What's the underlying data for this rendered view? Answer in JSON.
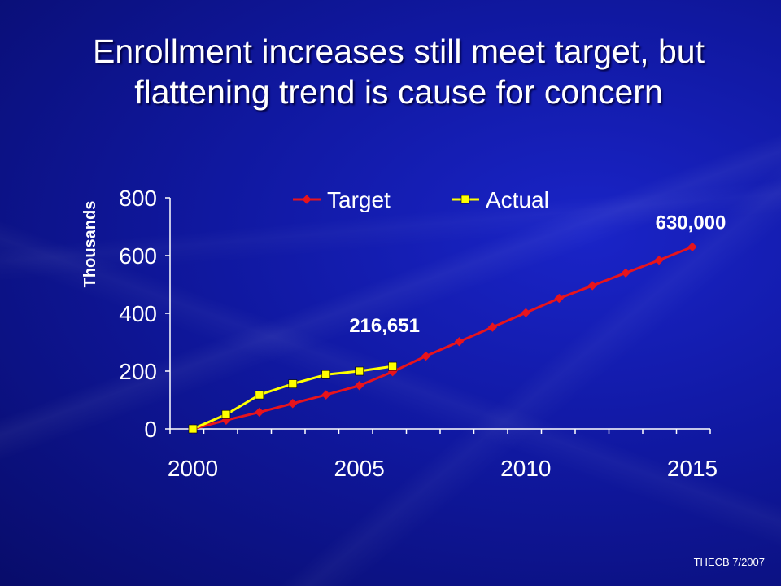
{
  "slide": {
    "title_line1": "Enrollment increases still meet target, but",
    "title_line2": "flattening trend is cause for concern",
    "footer": "THECB 7/2007"
  },
  "colors": {
    "target": "#e8141c",
    "actual": "#ffff00",
    "axis": "#ffffff",
    "background": "#1018a0"
  },
  "chart_data": {
    "type": "line",
    "ylabel": "Thousands",
    "xlabel": "",
    "ylim": [
      0,
      800
    ],
    "yticks": [
      0,
      200,
      400,
      600,
      800
    ],
    "xlim": [
      2000,
      2015
    ],
    "xticks": [
      2000,
      2005,
      2010,
      2015
    ],
    "grid": false,
    "legend_position": "top",
    "series": [
      {
        "name": "Target",
        "marker": "diamond",
        "color": "#e8141c",
        "x": [
          2000,
          2001,
          2002,
          2003,
          2004,
          2005,
          2006,
          2007,
          2008,
          2009,
          2010,
          2011,
          2012,
          2013,
          2014,
          2015
        ],
        "y": [
          0,
          30,
          58,
          88,
          118,
          150,
          198,
          252,
          302,
          352,
          402,
          452,
          496,
          540,
          584,
          630
        ]
      },
      {
        "name": "Actual",
        "marker": "square",
        "color": "#ffff00",
        "x": [
          2000,
          2001,
          2002,
          2003,
          2004,
          2005,
          2006
        ],
        "y": [
          0,
          50,
          118,
          156,
          188,
          200,
          216.651
        ]
      }
    ],
    "annotations": [
      {
        "text": "216,651",
        "x": 2006,
        "y": 216.651
      },
      {
        "text": "630,000",
        "x": 2015,
        "y": 630
      }
    ]
  }
}
